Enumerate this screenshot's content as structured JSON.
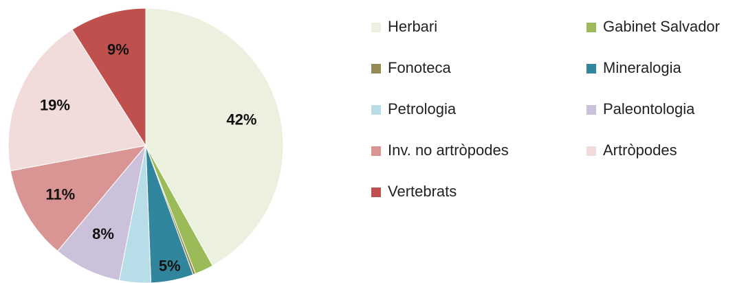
{
  "chart_data": {
    "type": "pie",
    "categories": [
      "Herbari",
      "Gabinet Salvador",
      "Fonoteca",
      "Mineralogia",
      "Petrologia",
      "Paleontologia",
      "Inv. no artròpodes",
      "Artròpodes",
      "Vertebrats"
    ],
    "values": [
      42,
      2.2,
      0.3,
      5,
      3.7,
      8,
      11,
      19,
      9
    ],
    "value_labels": [
      "42%",
      null,
      null,
      "5%",
      null,
      "8%",
      "11%",
      "19%",
      "9%"
    ],
    "colors": [
      "#ebf1de",
      "#9bbb59",
      "#948a54",
      "#31859c",
      "#b7dee8",
      "#ccc1da",
      "#d99594",
      "#f2dcdb",
      "#c0504d"
    ]
  }
}
